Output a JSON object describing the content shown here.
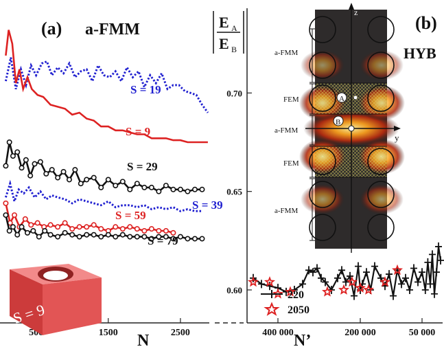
{
  "chart_data": [
    {
      "type": "line",
      "panel_label": "(a)",
      "title": "a-FMM",
      "xlabel": "N",
      "xticks": [
        "500",
        "1500",
        "2500"
      ],
      "xlim": [
        0,
        2900
      ],
      "ylim": [
        0.585,
        0.735
      ],
      "shared_ylabel_top": "E",
      "shared_ylabel_top_sub": "A",
      "shared_ylabel_bottom": "E",
      "shared_ylabel_bottom_sub": "B",
      "inset_label": "S = 9",
      "series": [
        {
          "name": "S = 19",
          "color": "#2020d0",
          "style": "dotted",
          "x": [
            80,
            150,
            220,
            290,
            360,
            430,
            500,
            580,
            650,
            720,
            800,
            880,
            960,
            1040,
            1120,
            1200,
            1280,
            1360,
            1440,
            1520,
            1600,
            1680,
            1760,
            1840,
            1920,
            2000,
            2080,
            2160,
            2240,
            2320,
            2400,
            2480,
            2560,
            2640,
            2720,
            2800,
            2880
          ],
          "y": [
            0.706,
            0.718,
            0.702,
            0.712,
            0.704,
            0.714,
            0.709,
            0.715,
            0.716,
            0.709,
            0.713,
            0.71,
            0.715,
            0.708,
            0.711,
            0.712,
            0.706,
            0.714,
            0.709,
            0.708,
            0.711,
            0.706,
            0.713,
            0.708,
            0.711,
            0.703,
            0.709,
            0.705,
            0.71,
            0.702,
            0.704,
            0.704,
            0.701,
            0.7,
            0.699,
            0.694,
            0.69
          ]
        },
        {
          "name": "S = 9",
          "color": "#dd2222",
          "style": "solid",
          "x": [
            80,
            120,
            170,
            220,
            270,
            320,
            380,
            440,
            520,
            600,
            700,
            800,
            900,
            1000,
            1100,
            1200,
            1300,
            1400,
            1500,
            1600,
            1700,
            1800,
            1900,
            2000,
            2100,
            2200,
            2300,
            2400,
            2500,
            2600,
            2700,
            2800,
            2880
          ],
          "y": [
            0.719,
            0.732,
            0.725,
            0.705,
            0.712,
            0.702,
            0.708,
            0.702,
            0.699,
            0.698,
            0.694,
            0.693,
            0.692,
            0.689,
            0.69,
            0.687,
            0.686,
            0.683,
            0.683,
            0.681,
            0.681,
            0.68,
            0.679,
            0.679,
            0.677,
            0.677,
            0.677,
            0.676,
            0.676,
            0.675,
            0.675,
            0.675,
            0.675
          ]
        },
        {
          "name": "S = 29",
          "color": "#111111",
          "style": "solid",
          "markers": "circle",
          "x": [
            80,
            130,
            180,
            240,
            300,
            360,
            420,
            480,
            560,
            640,
            720,
            800,
            880,
            960,
            1040,
            1120,
            1200,
            1300,
            1400,
            1500,
            1600,
            1700,
            1800,
            1900,
            2000,
            2100,
            2200,
            2300,
            2400,
            2500,
            2600,
            2700,
            2800
          ],
          "y": [
            0.663,
            0.675,
            0.668,
            0.67,
            0.662,
            0.666,
            0.658,
            0.664,
            0.665,
            0.659,
            0.661,
            0.657,
            0.66,
            0.656,
            0.661,
            0.654,
            0.656,
            0.657,
            0.652,
            0.656,
            0.653,
            0.655,
            0.651,
            0.654,
            0.652,
            0.652,
            0.65,
            0.653,
            0.651,
            0.651,
            0.65,
            0.651,
            0.651
          ]
        },
        {
          "name": "S = 39",
          "color": "#2020d0",
          "style": "dotted",
          "x": [
            80,
            140,
            200,
            260,
            330,
            400,
            480,
            560,
            640,
            720,
            800,
            900,
            1000,
            1100,
            1200,
            1300,
            1400,
            1500,
            1600,
            1700,
            1800,
            1900,
            2000,
            2100,
            2200,
            2300,
            2400,
            2500,
            2600,
            2700,
            2800
          ],
          "y": [
            0.647,
            0.654,
            0.645,
            0.651,
            0.649,
            0.652,
            0.647,
            0.65,
            0.646,
            0.648,
            0.647,
            0.646,
            0.644,
            0.646,
            0.645,
            0.644,
            0.643,
            0.645,
            0.642,
            0.643,
            0.643,
            0.642,
            0.643,
            0.641,
            0.642,
            0.641,
            0.642,
            0.64,
            0.641,
            0.64,
            0.64
          ]
        },
        {
          "name": "S = 59",
          "color": "#dd2222",
          "style": "solid",
          "markers": "circle",
          "x": [
            80,
            140,
            200,
            270,
            350,
            430,
            520,
            610,
            700,
            800,
            900,
            1000,
            1100,
            1200,
            1300,
            1400,
            1500,
            1600,
            1700,
            1800,
            1900,
            2000,
            2100,
            2200,
            2300,
            2400
          ],
          "y": [
            0.644,
            0.634,
            0.638,
            0.632,
            0.636,
            0.633,
            0.634,
            0.632,
            0.633,
            0.632,
            0.634,
            0.631,
            0.632,
            0.632,
            0.633,
            0.631,
            0.63,
            0.632,
            0.631,
            0.632,
            0.631,
            0.63,
            0.631,
            0.63,
            0.63,
            0.629
          ]
        },
        {
          "name": "S = 79",
          "color": "#111111",
          "style": "solid",
          "markers": "circle",
          "x": [
            80,
            130,
            180,
            240,
            300,
            380,
            460,
            540,
            620,
            700,
            800,
            900,
            1000,
            1100,
            1200,
            1300,
            1400,
            1500,
            1600,
            1700,
            1800,
            1900,
            2000,
            2100,
            2200,
            2300,
            2400,
            2500,
            2600,
            2700,
            2800
          ],
          "y": [
            0.638,
            0.63,
            0.632,
            0.628,
            0.632,
            0.629,
            0.63,
            0.627,
            0.63,
            0.628,
            0.627,
            0.629,
            0.628,
            0.627,
            0.628,
            0.628,
            0.627,
            0.628,
            0.627,
            0.628,
            0.627,
            0.627,
            0.627,
            0.626,
            0.627,
            0.627,
            0.626,
            0.627,
            0.626,
            0.626,
            0.626
          ]
        }
      ]
    },
    {
      "type": "line",
      "panel_label": "(b)",
      "title": "HYB",
      "xlabel": "N’",
      "xticks": [
        "400 000",
        "200 000",
        "50 000"
      ],
      "xlim": [
        475000,
        0
      ],
      "ylim": [
        0.585,
        0.735
      ],
      "yticks": [
        "0.60",
        "0.65",
        "0.70"
      ],
      "inset_labels": [
        "a-FMM",
        "FEM",
        "a-FMM",
        "FEM",
        "a-FMM"
      ],
      "inset_axes": [
        "z",
        "y"
      ],
      "inset_points": [
        "A",
        "B"
      ],
      "series": [
        {
          "name": "220",
          "color": "#111111",
          "style": "solid",
          "markers": "plus",
          "x": [
            460000,
            440000,
            420000,
            400000,
            380000,
            360000,
            340000,
            325000,
            315000,
            305000,
            295000,
            285000,
            270000,
            255000,
            245000,
            235000,
            225000,
            215000,
            205000,
            200000,
            195000,
            185000,
            175000,
            165000,
            150000,
            140000,
            130000,
            120000,
            110000,
            100000,
            90000,
            80000,
            70000,
            60000,
            50000,
            42000,
            36000,
            30000,
            25000,
            20000,
            15000,
            10000,
            5000
          ],
          "y": [
            0.606,
            0.603,
            0.602,
            0.601,
            0.599,
            0.6,
            0.603,
            0.61,
            0.609,
            0.611,
            0.606,
            0.604,
            0.6,
            0.606,
            0.61,
            0.604,
            0.607,
            0.597,
            0.612,
            0.6,
            0.603,
            0.609,
            0.6,
            0.612,
            0.606,
            0.602,
            0.608,
            0.597,
            0.61,
            0.603,
            0.606,
            0.6,
            0.611,
            0.604,
            0.609,
            0.6,
            0.614,
            0.603,
            0.618,
            0.598,
            0.609,
            0.622,
            0.615
          ]
        },
        {
          "name": "2050",
          "color": "#dd2222",
          "style": "none",
          "markers": "star",
          "x": [
            460000,
            420000,
            400000,
            370000,
            280000,
            240000,
            220000,
            200000,
            180000,
            140000,
            110000
          ],
          "y": [
            0.604,
            0.604,
            0.598,
            0.599,
            0.599,
            0.6,
            0.604,
            0.601,
            0.6,
            0.604,
            0.61
          ]
        }
      ]
    }
  ]
}
